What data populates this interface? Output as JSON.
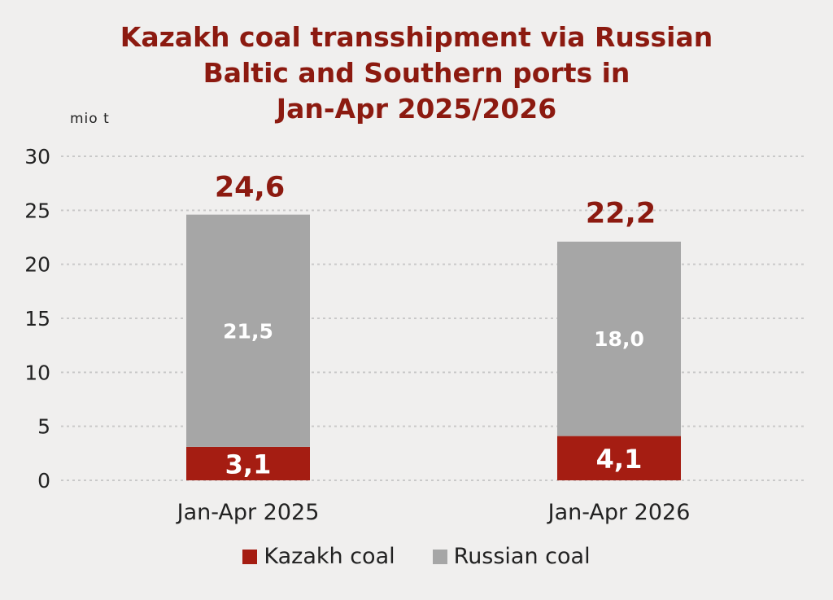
{
  "chart_data": {
    "type": "bar",
    "stacked": true,
    "title_lines": [
      "Kazakh coal transshipment via Russian",
      "Baltic and Southern ports in",
      "Jan-Apr 2025/2026"
    ],
    "unit": "mio t",
    "categories": [
      "Jan-Apr 2025",
      "Jan-Apr 2026"
    ],
    "series": [
      {
        "name": "Kazakh coal",
        "color": "#a51d12",
        "values": [
          3.1,
          4.1
        ],
        "labels": [
          "3,1",
          "4,1"
        ]
      },
      {
        "name": "Russian coal",
        "color": "#a6a6a6",
        "values": [
          21.5,
          18.0
        ],
        "labels": [
          "21,5",
          "18,0"
        ]
      }
    ],
    "totals": [
      24.6,
      22.2
    ],
    "total_labels": [
      "24,6",
      "22,2"
    ],
    "y_ticks": [
      0,
      5,
      10,
      15,
      20,
      25,
      30
    ],
    "ylim": [
      0,
      30
    ],
    "grid": true,
    "legend_position": "bottom"
  }
}
